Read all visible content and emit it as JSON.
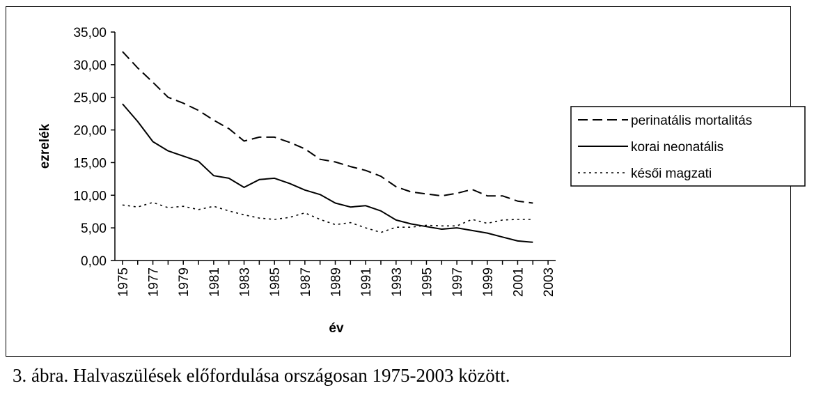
{
  "caption": "3. ábra. Halvaszülések előfordulása országosan 1975-2003 között.",
  "chart_data": {
    "type": "line",
    "xlabel": "év",
    "ylabel": "ezrelék",
    "ylim": [
      0,
      35
    ],
    "y_ticks": [
      "0,00",
      "5,00",
      "10,00",
      "15,00",
      "20,00",
      "25,00",
      "30,00",
      "35,00"
    ],
    "x_ticks": [
      "1975",
      "1977",
      "1979",
      "1981",
      "1983",
      "1985",
      "1987",
      "1989",
      "1991",
      "1993",
      "1995",
      "1997",
      "1999",
      "2001",
      "2003"
    ],
    "x": [
      1975,
      1976,
      1977,
      1978,
      1979,
      1980,
      1981,
      1982,
      1983,
      1984,
      1985,
      1986,
      1987,
      1988,
      1989,
      1990,
      1991,
      1992,
      1993,
      1994,
      1995,
      1996,
      1997,
      1998,
      1999,
      2000,
      2001,
      2002
    ],
    "legend_position": "right",
    "series": [
      {
        "name": "perinatális mortalitás",
        "style": "dashed",
        "values": [
          32.0,
          29.5,
          27.3,
          25.0,
          24.1,
          23.0,
          21.5,
          20.2,
          18.3,
          18.9,
          18.9,
          18.1,
          17.1,
          15.5,
          15.1,
          14.4,
          13.8,
          12.9,
          11.3,
          10.5,
          10.2,
          9.9,
          10.3,
          10.9,
          9.9,
          9.9,
          9.1,
          8.8
        ]
      },
      {
        "name": "korai neonatális",
        "style": "solid",
        "values": [
          24.0,
          21.3,
          18.2,
          16.8,
          16.0,
          15.2,
          13.0,
          12.6,
          11.2,
          12.4,
          12.6,
          11.8,
          10.8,
          10.1,
          8.8,
          8.2,
          8.4,
          7.6,
          6.2,
          5.6,
          5.2,
          4.8,
          5.0,
          4.6,
          4.2,
          3.6,
          3.0,
          2.8
        ]
      },
      {
        "name": "késői magzati",
        "style": "dotted",
        "values": [
          8.5,
          8.2,
          8.9,
          8.1,
          8.3,
          7.8,
          8.3,
          7.6,
          7.0,
          6.5,
          6.3,
          6.6,
          7.3,
          6.3,
          5.5,
          5.8,
          5.0,
          4.3,
          5.1,
          5.1,
          5.4,
          5.3,
          5.3,
          6.3,
          5.7,
          6.2,
          6.3,
          6.3
        ]
      }
    ]
  },
  "colors": {
    "line": "#000000",
    "background": "#ffffff"
  }
}
